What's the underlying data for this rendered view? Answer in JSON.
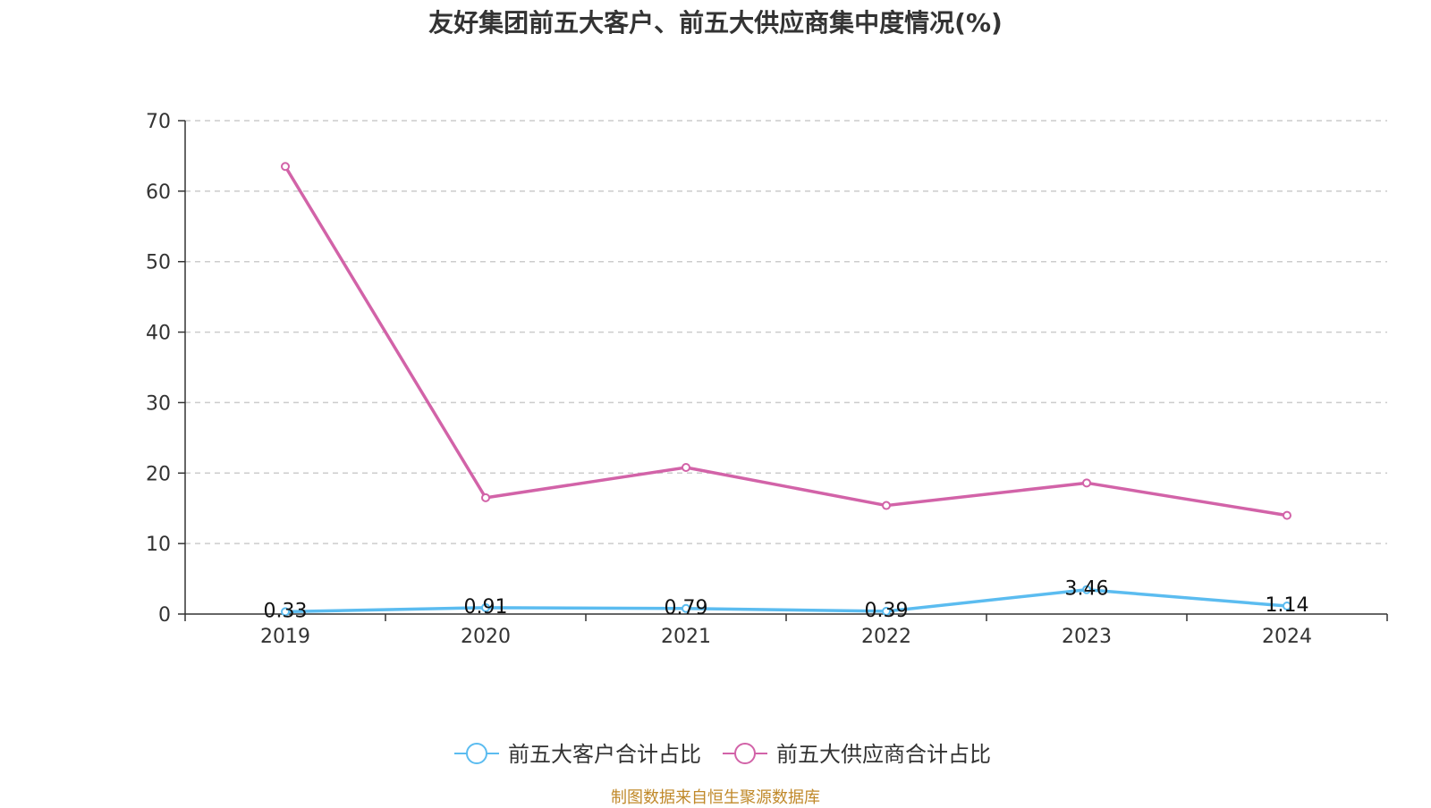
{
  "chart_data": {
    "type": "line",
    "title": "友好集团前五大客户、前五大供应商集中度情况(%)",
    "xlabel": "",
    "ylabel": "",
    "categories": [
      "2019",
      "2020",
      "2021",
      "2022",
      "2023",
      "2024"
    ],
    "ylim": [
      0,
      70
    ],
    "yticks": [
      0,
      10,
      20,
      30,
      40,
      50,
      60,
      70
    ],
    "grid": true,
    "legend_position": "bottom",
    "series": [
      {
        "name": "前五大客户合计占比",
        "color": "#5bbcf0",
        "values": [
          0.33,
          0.91,
          0.79,
          0.39,
          3.46,
          1.14
        ],
        "show_labels": true
      },
      {
        "name": "前五大供应商合计占比",
        "color": "#d263a8",
        "values": [
          63.5,
          16.5,
          20.8,
          15.4,
          18.6,
          14.0
        ],
        "show_labels": false
      }
    ]
  },
  "source": "制图数据来自恒生聚源数据库"
}
